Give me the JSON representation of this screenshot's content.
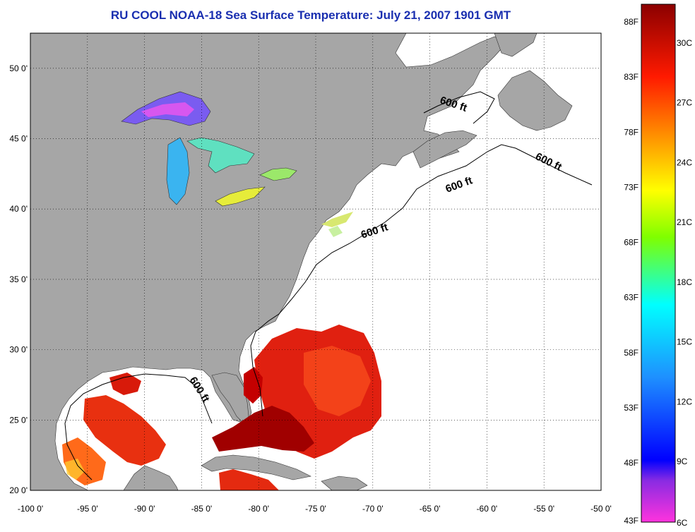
{
  "title": "RU COOL  NOAA-18  Sea Surface Temperature:  July 21, 2007 1901 GMT",
  "map": {
    "lon_labels": [
      "-100 0'",
      "-95 0'",
      "-90 0'",
      "-85 0'",
      "-80 0'",
      "-75 0'",
      "-70 0'",
      "-65 0'",
      "-60 0'",
      "-55 0'",
      "-50 0'"
    ],
    "lat_labels": [
      "50 0'",
      "45 0'",
      "40 0'",
      "35 0'",
      "30 0'",
      "25 0'",
      "20 0'"
    ],
    "lon_range": [
      -100,
      -50
    ],
    "lat_range": [
      20,
      52.5
    ],
    "contour_labels": [
      "600 ft",
      "600 ft",
      "600 ft",
      "600 ft",
      "600 ft"
    ],
    "land_color": "#a6a6a6",
    "ocean_color": "#ffffff"
  },
  "colorbar": {
    "fahrenheit_labels": [
      "88F",
      "83F",
      "78F",
      "73F",
      "68F",
      "63F",
      "58F",
      "53F",
      "48F",
      "43F"
    ],
    "celsius_labels": [
      "30C",
      "27C",
      "24C",
      "21C",
      "18C",
      "15C",
      "12C",
      "9C",
      "6C"
    ],
    "colors": [
      "#8b0000",
      "#ff0000",
      "#ff8c00",
      "#ffff00",
      "#7fff00",
      "#00ffff",
      "#0080ff",
      "#0000ff",
      "#9400d3",
      "#ff00ff"
    ]
  }
}
